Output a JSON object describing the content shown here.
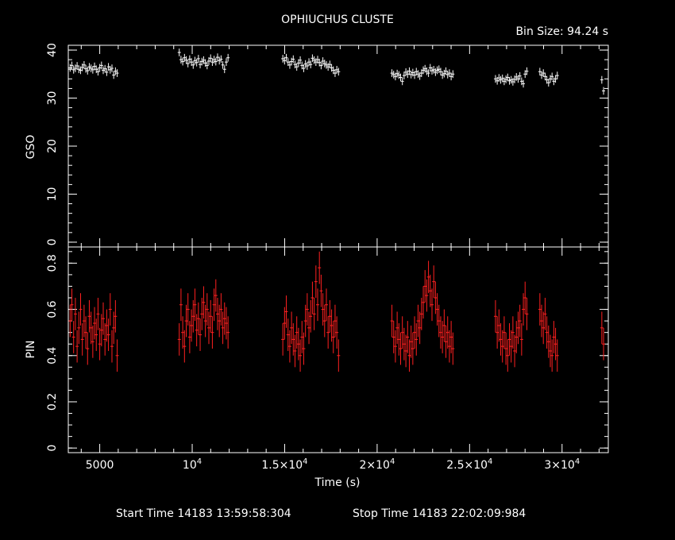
{
  "header": {
    "title": "OPHIUCHUS CLUSTE",
    "bin_size": "Bin Size:  94.24  s"
  },
  "footer": {
    "start_time": "Start Time 14183 13:59:58:304",
    "stop_time": "Stop Time 14183 22:02:09:984"
  },
  "colors": {
    "gso": "#ffffff",
    "pin": "#ff2020",
    "axes": "#ffffff",
    "background": "#000000"
  },
  "chart_data": [
    {
      "type": "scatter",
      "panel": "top",
      "ylabel": "GSO",
      "xlim": [
        3300,
        32500
      ],
      "ylim": [
        -1,
        41
      ],
      "yticks": [
        0,
        10,
        20,
        30,
        40
      ],
      "ytick_labels": [
        "0",
        "10",
        "20",
        "30",
        "40"
      ],
      "series": [
        {
          "x": [
            3400,
            3494,
            3588,
            3683,
            3777,
            3871,
            3965,
            4059,
            4154,
            4248,
            4342,
            4436,
            4530,
            4625,
            4719,
            4813,
            4907,
            5001,
            5096,
            5190,
            5284,
            5378,
            5472,
            5567,
            5661,
            5755,
            5849,
            5943,
            9300,
            9394,
            9488,
            9583,
            9677,
            9771,
            9865,
            9959,
            10054,
            10148,
            10242,
            10336,
            10430,
            10525,
            10619,
            10713,
            10807,
            10901,
            10996,
            11090,
            11184,
            11278,
            11372,
            11467,
            11561,
            11655,
            11749,
            11843,
            11938,
            14900,
            14994,
            15088,
            15183,
            15277,
            15371,
            15465,
            15559,
            15654,
            15748,
            15842,
            15936,
            16030,
            16125,
            16219,
            16313,
            16407,
            16501,
            16596,
            16690,
            16784,
            16878,
            16972,
            17067,
            17161,
            17255,
            17349,
            17443,
            17538,
            17632,
            17726,
            17820,
            17914,
            20800,
            20894,
            20988,
            21083,
            21177,
            21271,
            21365,
            21459,
            21554,
            21648,
            21742,
            21836,
            21930,
            22025,
            22119,
            22213,
            22307,
            22401,
            22496,
            22590,
            22684,
            22778,
            22872,
            22967,
            23061,
            23155,
            23249,
            23343,
            23438,
            23532,
            23626,
            23720,
            23814,
            23909,
            24003,
            24097,
            26400,
            26494,
            26588,
            26683,
            26777,
            26871,
            26965,
            27059,
            27154,
            27248,
            27342,
            27436,
            27530,
            27625,
            27719,
            27813,
            27907,
            28001,
            28096,
            28800,
            28894,
            28988,
            29083,
            29177,
            29271,
            29365,
            29459,
            29554,
            29648,
            29742,
            32150,
            32244
          ],
          "y": [
            36.3,
            36.8,
            35.9,
            36.2,
            36.7,
            36.0,
            35.8,
            36.4,
            36.9,
            36.1,
            35.7,
            36.5,
            36.2,
            35.9,
            36.6,
            36.0,
            35.5,
            36.3,
            36.8,
            35.8,
            36.1,
            35.4,
            36.5,
            35.9,
            36.2,
            34.8,
            35.6,
            35.2,
            39.5,
            38.0,
            37.6,
            38.4,
            37.9,
            37.2,
            38.1,
            37.5,
            36.9,
            37.8,
            37.4,
            38.2,
            37.0,
            37.6,
            37.9,
            37.3,
            36.8,
            37.7,
            38.3,
            37.5,
            38.0,
            37.6,
            38.5,
            37.8,
            38.1,
            36.9,
            36.0,
            37.5,
            38.4,
            38.2,
            37.8,
            38.4,
            37.5,
            36.9,
            37.6,
            38.1,
            37.0,
            36.5,
            37.3,
            37.9,
            36.8,
            36.2,
            37.1,
            36.7,
            37.5,
            37.0,
            38.3,
            37.9,
            37.5,
            38.0,
            37.4,
            36.8,
            37.7,
            37.2,
            36.9,
            36.5,
            37.0,
            36.3,
            35.8,
            35.2,
            35.9,
            35.5,
            35.2,
            34.9,
            34.5,
            35.1,
            34.8,
            34.3,
            33.5,
            34.7,
            35.4,
            35.0,
            35.6,
            34.9,
            35.3,
            34.8,
            35.5,
            35.0,
            34.6,
            35.2,
            35.8,
            36.1,
            35.6,
            35.2,
            36.3,
            35.7,
            35.9,
            35.4,
            35.8,
            36.0,
            35.5,
            34.8,
            35.1,
            35.6,
            34.9,
            35.2,
            34.5,
            35.0,
            34.0,
            33.6,
            34.2,
            33.8,
            34.1,
            33.5,
            33.9,
            34.3,
            33.6,
            33.8,
            33.4,
            33.9,
            34.4,
            34.0,
            34.6,
            33.5,
            33.0,
            35.0,
            35.6,
            35.5,
            34.8,
            35.2,
            34.5,
            33.8,
            33.2,
            34.0,
            34.5,
            33.5,
            34.0,
            34.7,
            33.8,
            31.5
          ],
          "error": 0.8
        }
      ]
    },
    {
      "type": "scatter",
      "panel": "bottom",
      "xlabel": "Time (s)",
      "ylabel": "PIN",
      "xlim": [
        3300,
        32500
      ],
      "ylim": [
        -0.02,
        0.87
      ],
      "yticks": [
        0,
        0.2,
        0.4,
        0.6,
        0.8
      ],
      "ytick_labels": [
        "0",
        "0.2",
        "0.4",
        "0.6",
        "0.8"
      ],
      "series": [
        {
          "x": [
            3400,
            3494,
            3588,
            3683,
            3777,
            3871,
            3965,
            4059,
            4154,
            4248,
            4342,
            4436,
            4530,
            4625,
            4719,
            4813,
            4907,
            5001,
            5096,
            5190,
            5284,
            5378,
            5472,
            5567,
            5661,
            5755,
            5849,
            5943,
            9300,
            9394,
            9488,
            9583,
            9677,
            9771,
            9865,
            9959,
            10054,
            10148,
            10242,
            10336,
            10430,
            10525,
            10619,
            10713,
            10807,
            10901,
            10996,
            11090,
            11184,
            11278,
            11372,
            11467,
            11561,
            11655,
            11749,
            11843,
            11938,
            14900,
            14994,
            15088,
            15183,
            15277,
            15371,
            15465,
            15559,
            15654,
            15748,
            15842,
            15936,
            16030,
            16125,
            16219,
            16313,
            16407,
            16501,
            16596,
            16690,
            16784,
            16878,
            16972,
            17067,
            17161,
            17255,
            17349,
            17443,
            17538,
            17632,
            17726,
            17820,
            17914,
            20800,
            20894,
            20988,
            21083,
            21177,
            21271,
            21365,
            21459,
            21554,
            21648,
            21742,
            21836,
            21930,
            22025,
            22119,
            22213,
            22307,
            22401,
            22496,
            22590,
            22684,
            22778,
            22872,
            22967,
            23061,
            23155,
            23249,
            23343,
            23438,
            23532,
            23626,
            23720,
            23814,
            23909,
            24003,
            24097,
            26400,
            26494,
            26588,
            26683,
            26777,
            26871,
            26965,
            27059,
            27154,
            27248,
            27342,
            27436,
            27530,
            27625,
            27719,
            27813,
            27907,
            28001,
            28096,
            28800,
            28894,
            28988,
            29083,
            29177,
            29271,
            29365,
            29459,
            29554,
            29648,
            29742,
            32150,
            32244
          ],
          "y": [
            0.55,
            0.62,
            0.48,
            0.58,
            0.44,
            0.52,
            0.6,
            0.47,
            0.55,
            0.5,
            0.43,
            0.57,
            0.52,
            0.46,
            0.54,
            0.49,
            0.58,
            0.45,
            0.51,
            0.56,
            0.47,
            0.53,
            0.49,
            0.6,
            0.44,
            0.52,
            0.57,
            0.4,
            0.47,
            0.62,
            0.5,
            0.44,
            0.55,
            0.6,
            0.48,
            0.53,
            0.57,
            0.62,
            0.51,
            0.56,
            0.49,
            0.58,
            0.63,
            0.55,
            0.6,
            0.52,
            0.57,
            0.5,
            0.62,
            0.66,
            0.58,
            0.55,
            0.6,
            0.52,
            0.56,
            0.54,
            0.5,
            0.47,
            0.54,
            0.59,
            0.49,
            0.44,
            0.52,
            0.47,
            0.42,
            0.5,
            0.45,
            0.4,
            0.48,
            0.43,
            0.55,
            0.6,
            0.52,
            0.57,
            0.65,
            0.58,
            0.72,
            0.62,
            0.78,
            0.68,
            0.6,
            0.55,
            0.62,
            0.5,
            0.57,
            0.53,
            0.48,
            0.55,
            0.5,
            0.4,
            0.55,
            0.48,
            0.44,
            0.52,
            0.47,
            0.43,
            0.5,
            0.45,
            0.42,
            0.48,
            0.4,
            0.46,
            0.43,
            0.5,
            0.47,
            0.55,
            0.52,
            0.58,
            0.63,
            0.7,
            0.66,
            0.74,
            0.68,
            0.62,
            0.72,
            0.65,
            0.6,
            0.55,
            0.5,
            0.48,
            0.53,
            0.46,
            0.5,
            0.44,
            0.48,
            0.43,
            0.57,
            0.5,
            0.53,
            0.47,
            0.44,
            0.5,
            0.43,
            0.4,
            0.47,
            0.44,
            0.5,
            0.42,
            0.48,
            0.52,
            0.55,
            0.47,
            0.6,
            0.65,
            0.58,
            0.6,
            0.55,
            0.52,
            0.58,
            0.5,
            0.46,
            0.42,
            0.4,
            0.48,
            0.45,
            0.4,
            0.52,
            0.45
          ],
          "error": 0.07
        }
      ]
    }
  ],
  "xaxis": {
    "xlabel": "Time (s)",
    "ticks": [
      {
        "value": 5000,
        "label": "5000",
        "sup": ""
      },
      {
        "value": 10000,
        "label": "10",
        "sup": "4"
      },
      {
        "value": 15000,
        "label": "1.5×10",
        "sup": "4"
      },
      {
        "value": 20000,
        "label": "2×10",
        "sup": "4"
      },
      {
        "value": 25000,
        "label": "2.5×10",
        "sup": "4"
      },
      {
        "value": 30000,
        "label": "3×10",
        "sup": "4"
      }
    ]
  }
}
